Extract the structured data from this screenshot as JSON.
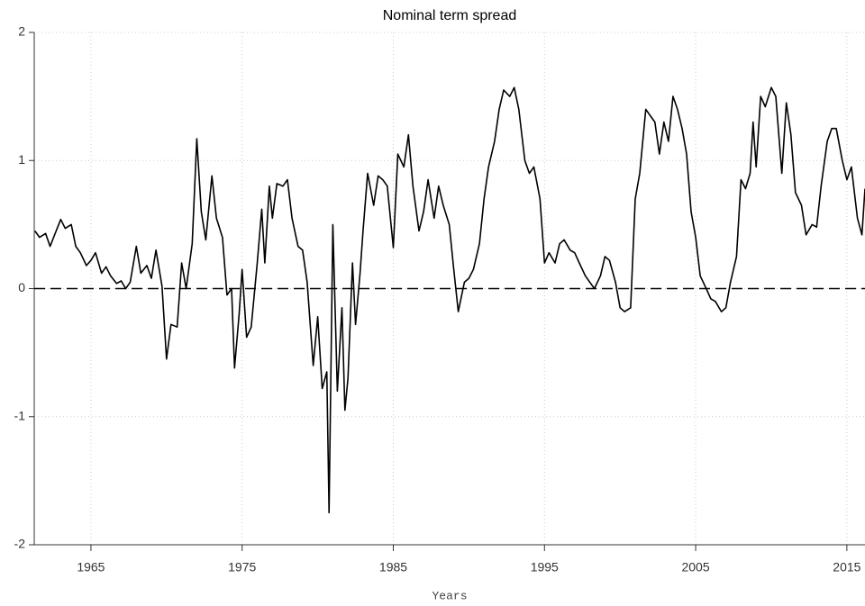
{
  "chart_data": {
    "type": "line",
    "title": "Nominal term spread",
    "x_label": "Years",
    "xlim": [
      1961.25,
      2016.2
    ],
    "ylim": [
      -2,
      2
    ],
    "xticks": [
      1965,
      1975,
      1985,
      1995,
      2005,
      2015
    ],
    "yticks": [
      -2,
      -1,
      0,
      1,
      2
    ],
    "grid": true,
    "reference_line": 0,
    "series": [
      {
        "color": "#000000",
        "x": [
          1961.3,
          1961.6,
          1962.0,
          1962.3,
          1962.7,
          1963.0,
          1963.3,
          1963.7,
          1964.0,
          1964.3,
          1964.7,
          1965.0,
          1965.3,
          1965.7,
          1966.0,
          1966.3,
          1966.7,
          1967.0,
          1967.3,
          1967.6,
          1968.0,
          1968.3,
          1968.7,
          1969.0,
          1969.3,
          1969.7,
          1970.0,
          1970.3,
          1970.7,
          1971.0,
          1971.3,
          1971.7,
          1972.0,
          1972.3,
          1972.6,
          1973.0,
          1973.3,
          1973.7,
          1974.0,
          1974.3,
          1974.5,
          1974.8,
          1975.0,
          1975.3,
          1975.6,
          1976.0,
          1976.3,
          1976.5,
          1976.8,
          1977.0,
          1977.3,
          1977.7,
          1978.0,
          1978.3,
          1978.7,
          1979.0,
          1979.3,
          1979.7,
          1980.0,
          1980.3,
          1980.6,
          1980.75,
          1981.0,
          1981.3,
          1981.6,
          1981.8,
          1982.0,
          1982.3,
          1982.5,
          1982.8,
          1983.0,
          1983.3,
          1983.7,
          1984.0,
          1984.3,
          1984.6,
          1985.0,
          1985.3,
          1985.7,
          1986.0,
          1986.3,
          1986.7,
          1987.0,
          1987.3,
          1987.7,
          1988.0,
          1988.3,
          1988.7,
          1989.0,
          1989.3,
          1989.7,
          1990.0,
          1990.3,
          1990.7,
          1991.0,
          1991.3,
          1991.7,
          1992.0,
          1992.3,
          1992.7,
          1993.0,
          1993.3,
          1993.7,
          1994.0,
          1994.3,
          1994.7,
          1995.0,
          1995.3,
          1995.7,
          1996.0,
          1996.3,
          1996.7,
          1997.0,
          1997.3,
          1997.7,
          1998.0,
          1998.3,
          1998.7,
          1999.0,
          1999.3,
          1999.7,
          2000.0,
          2000.3,
          2000.7,
          2001.0,
          2001.3,
          2001.7,
          2002.0,
          2002.3,
          2002.6,
          2002.9,
          2003.2,
          2003.5,
          2003.8,
          2004.1,
          2004.4,
          2004.7,
          2005.0,
          2005.3,
          2005.7,
          2006.0,
          2006.3,
          2006.7,
          2007.0,
          2007.3,
          2007.7,
          2008.0,
          2008.3,
          2008.6,
          2008.8,
          2009.0,
          2009.3,
          2009.6,
          2010.0,
          2010.3,
          2010.7,
          2011.0,
          2011.3,
          2011.6,
          2012.0,
          2012.3,
          2012.7,
          2013.0,
          2013.3,
          2013.7,
          2014.0,
          2014.3,
          2014.7,
          2015.0,
          2015.3,
          2015.7,
          2016.0,
          2016.2
        ],
        "values": [
          0.45,
          0.4,
          0.43,
          0.33,
          0.45,
          0.54,
          0.47,
          0.5,
          0.33,
          0.28,
          0.18,
          0.22,
          0.28,
          0.12,
          0.17,
          0.1,
          0.04,
          0.06,
          0.0,
          0.05,
          0.33,
          0.12,
          0.18,
          0.08,
          0.3,
          0.02,
          -0.55,
          -0.28,
          -0.3,
          0.2,
          0.0,
          0.35,
          1.17,
          0.6,
          0.38,
          0.88,
          0.55,
          0.4,
          -0.05,
          0.0,
          -0.62,
          -0.2,
          0.15,
          -0.38,
          -0.3,
          0.2,
          0.62,
          0.2,
          0.8,
          0.55,
          0.82,
          0.8,
          0.85,
          0.55,
          0.33,
          0.3,
          0.05,
          -0.6,
          -0.22,
          -0.78,
          -0.65,
          -1.75,
          0.5,
          -0.8,
          -0.15,
          -0.95,
          -0.7,
          0.2,
          -0.28,
          0.12,
          0.45,
          0.9,
          0.65,
          0.88,
          0.85,
          0.8,
          0.32,
          1.05,
          0.95,
          1.2,
          0.8,
          0.45,
          0.6,
          0.85,
          0.55,
          0.8,
          0.65,
          0.5,
          0.15,
          -0.18,
          0.05,
          0.08,
          0.15,
          0.35,
          0.7,
          0.95,
          1.15,
          1.4,
          1.55,
          1.5,
          1.57,
          1.4,
          1.0,
          0.9,
          0.95,
          0.7,
          0.2,
          0.28,
          0.2,
          0.35,
          0.38,
          0.3,
          0.28,
          0.2,
          0.1,
          0.05,
          0.0,
          0.1,
          0.25,
          0.22,
          0.05,
          -0.15,
          -0.18,
          -0.15,
          0.7,
          0.9,
          1.4,
          1.35,
          1.3,
          1.05,
          1.3,
          1.15,
          1.5,
          1.4,
          1.25,
          1.05,
          0.6,
          0.4,
          0.1,
          0.0,
          -0.08,
          -0.1,
          -0.18,
          -0.15,
          0.05,
          0.25,
          0.85,
          0.78,
          0.9,
          1.3,
          0.95,
          1.5,
          1.42,
          1.57,
          1.5,
          0.9,
          1.45,
          1.2,
          0.75,
          0.65,
          0.42,
          0.5,
          0.48,
          0.8,
          1.15,
          1.25,
          1.25,
          1.0,
          0.85,
          0.95,
          0.55,
          0.42,
          0.78
        ]
      }
    ]
  }
}
